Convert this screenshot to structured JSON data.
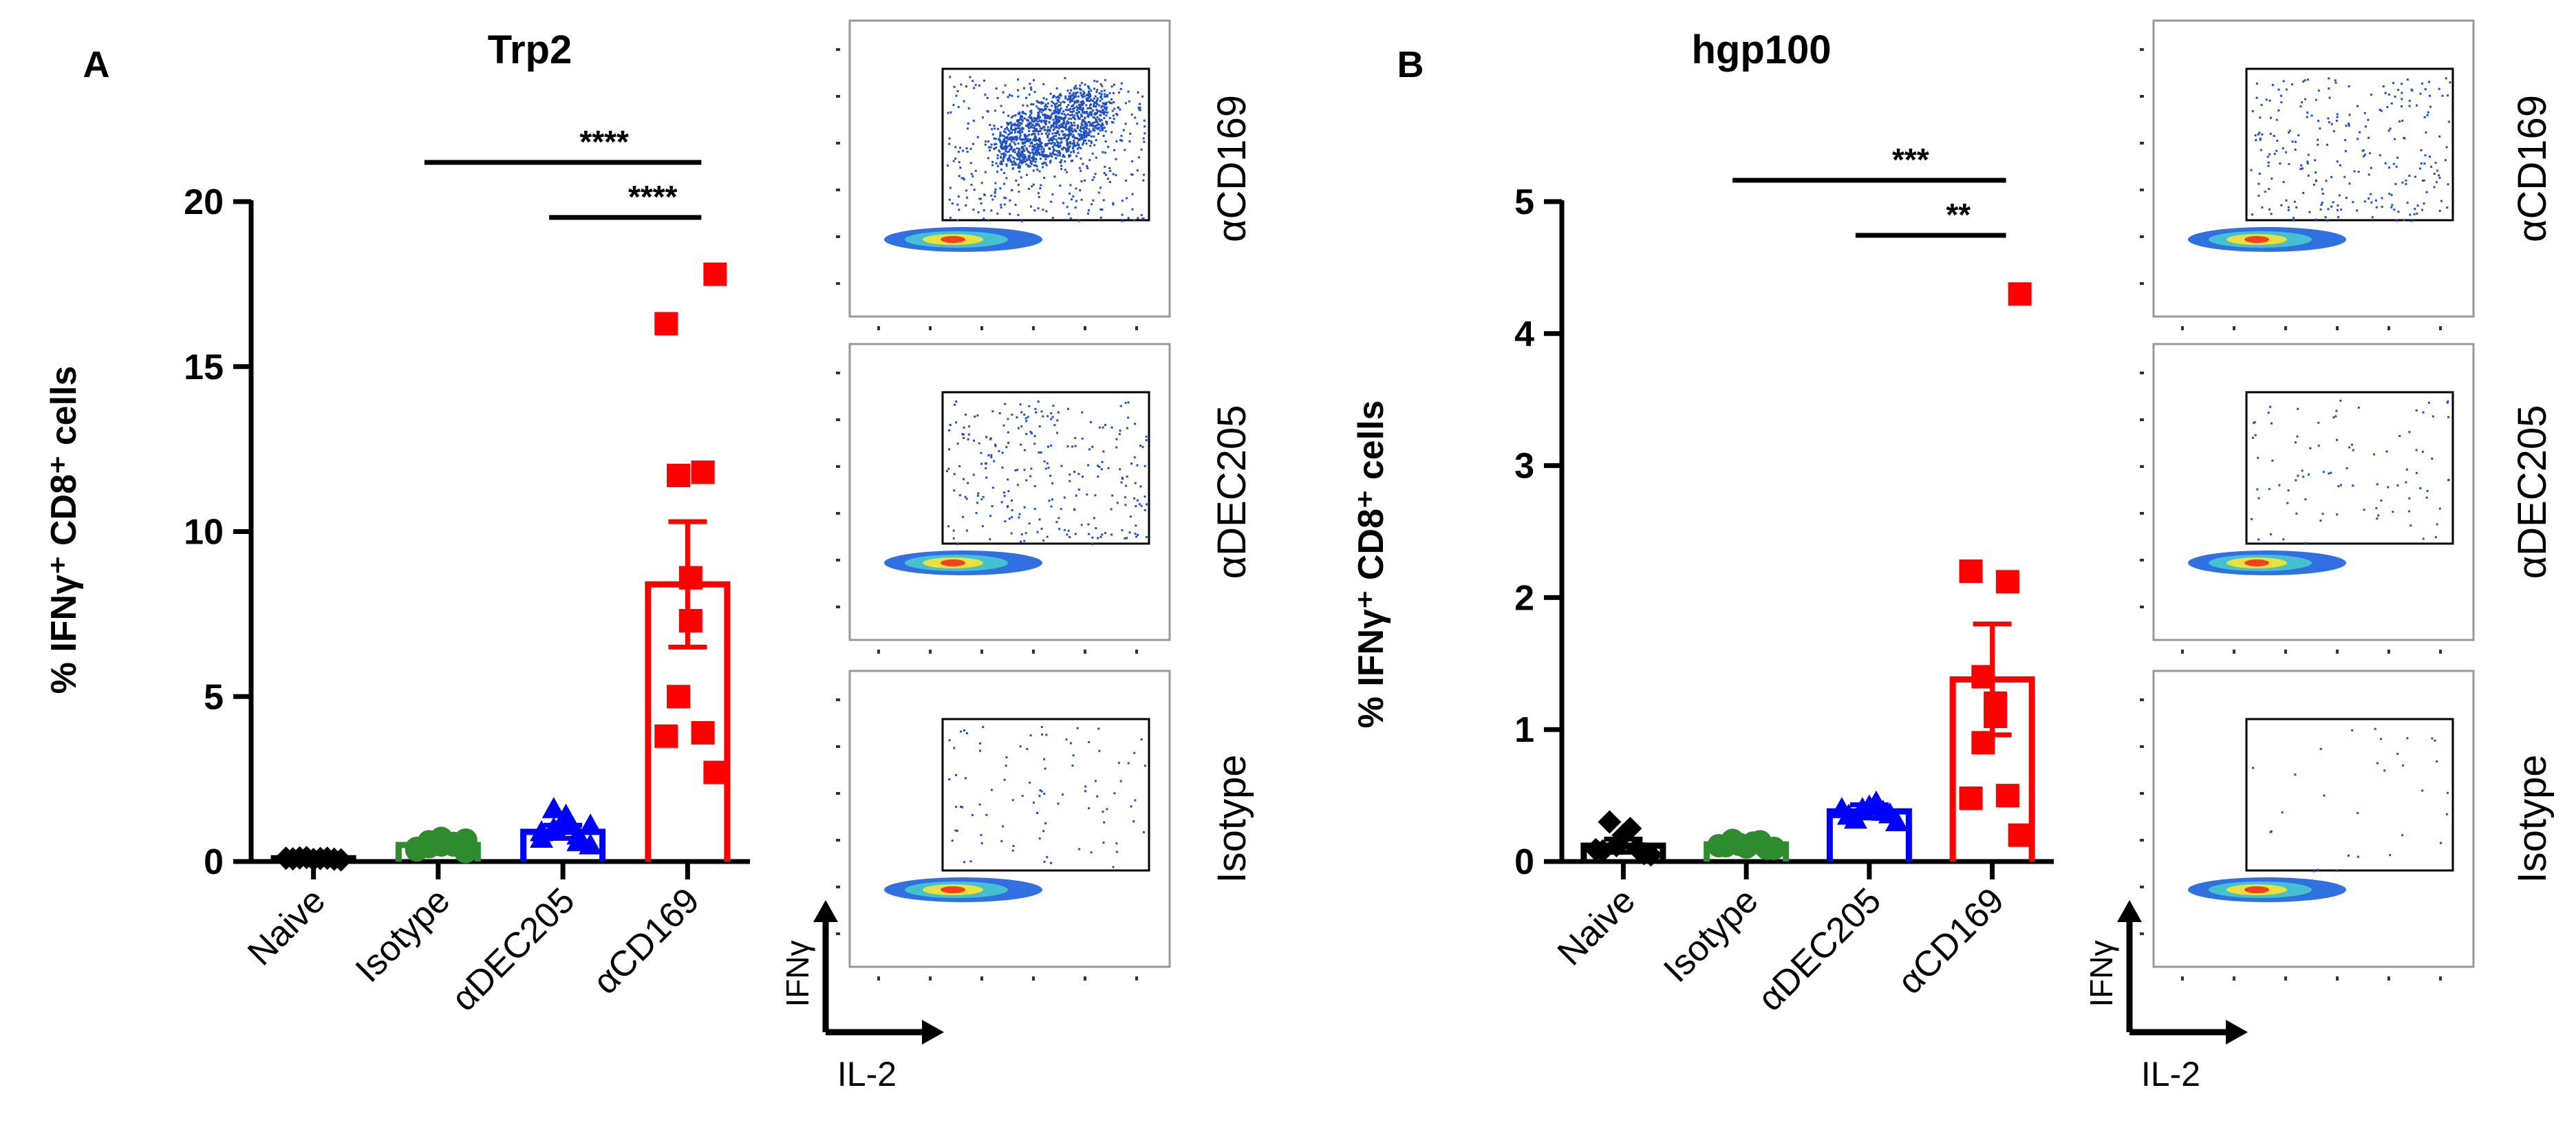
{
  "panels": [
    {
      "letter": "A",
      "title": "Trp2",
      "ylabel": "% IFNγ⁺ CD8⁺ cells",
      "significance": [
        {
          "label": "****",
          "from": "Isotype",
          "to": "αCD169"
        },
        {
          "label": "****",
          "from": "αDEC205",
          "to": "αCD169"
        }
      ],
      "flow_plots": [
        {
          "label": "αCD169",
          "density": "high"
        },
        {
          "label": "αDEC205",
          "density": "medium"
        },
        {
          "label": "Isotype",
          "density": "low"
        }
      ],
      "flow_axes": {
        "y": "IFNγ",
        "x": "IL-2"
      }
    },
    {
      "letter": "B",
      "title": "hgp100",
      "ylabel": "% IFNγ⁺ CD8⁺ cells",
      "significance": [
        {
          "label": "***",
          "from": "Isotype",
          "to": "αCD169"
        },
        {
          "label": "**",
          "from": "αDEC205",
          "to": "αCD169"
        }
      ],
      "flow_plots": [
        {
          "label": "αCD169",
          "density": "medium"
        },
        {
          "label": "αDEC205",
          "density": "low"
        },
        {
          "label": "Isotype",
          "density": "very-low"
        }
      ],
      "flow_axes": {
        "y": "IFNγ",
        "x": "IL-2"
      }
    }
  ],
  "chart_data": [
    {
      "type": "bar",
      "title": "Trp2",
      "ylabel": "% IFNγ⁺ CD8⁺ cells",
      "xlabel": "",
      "categories": [
        "Naive",
        "Isotype",
        "αDEC205",
        "αCD169"
      ],
      "ylim": [
        0,
        20
      ],
      "yticks": [
        0,
        5,
        10,
        15,
        20
      ],
      "colors": [
        "#000000",
        "#2e8b2e",
        "#0000ff",
        "#ff0000"
      ],
      "markers": [
        "diamond",
        "circle",
        "triangle",
        "square"
      ],
      "means": [
        0.1,
        0.5,
        0.9,
        8.4
      ],
      "sem": [
        0.05,
        0.1,
        0.2,
        1.9
      ],
      "points": [
        [
          0.05,
          0.08,
          0.1,
          0.12,
          0.06,
          0.09,
          0.11,
          0.07,
          0.1
        ],
        [
          0.3,
          0.4,
          0.5,
          0.6,
          0.7,
          0.5,
          0.45,
          0.55,
          0.35,
          0.65
        ],
        [
          0.5,
          0.7,
          0.8,
          1.0,
          1.2,
          1.4,
          1.6,
          0.6,
          0.9,
          1.1
        ],
        [
          17.8,
          16.3,
          11.8,
          11.7,
          8.6,
          7.3,
          5.0,
          3.9,
          3.8,
          2.7
        ]
      ],
      "grid": false,
      "legend": "none"
    },
    {
      "type": "bar",
      "title": "hgp100",
      "ylabel": "% IFNγ⁺ CD8⁺ cells",
      "xlabel": "",
      "categories": [
        "Naive",
        "Isotype",
        "αDEC205",
        "αCD169"
      ],
      "ylim": [
        0,
        5
      ],
      "yticks": [
        0,
        1,
        2,
        3,
        4,
        5
      ],
      "colors": [
        "#000000",
        "#2e8b2e",
        "#0000ff",
        "#ff0000"
      ],
      "markers": [
        "diamond",
        "circle",
        "triangle",
        "square"
      ],
      "means": [
        0.12,
        0.13,
        0.38,
        1.38
      ],
      "sem": [
        0.05,
        0.03,
        0.05,
        0.42
      ],
      "points": [
        [
          0.05,
          0.08,
          0.1,
          0.12,
          0.2,
          0.25,
          0.3,
          0.06,
          0.09
        ],
        [
          0.1,
          0.12,
          0.15,
          0.13,
          0.11,
          0.14,
          0.16,
          0.1,
          0.12
        ],
        [
          0.3,
          0.35,
          0.38,
          0.4,
          0.42,
          0.45,
          0.32,
          0.36,
          0.4
        ],
        [
          4.3,
          2.2,
          2.12,
          1.4,
          1.2,
          1.1,
          0.9,
          0.5,
          0.48,
          0.2
        ]
      ],
      "grid": false,
      "legend": "none"
    }
  ]
}
